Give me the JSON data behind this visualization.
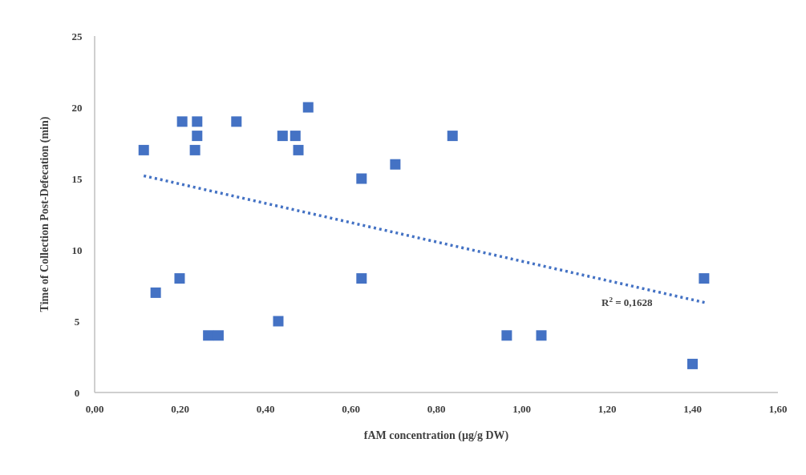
{
  "chart_data": {
    "type": "scatter",
    "xlabel": "fAM concentration  (µg/g DW)",
    "ylabel": "Time of Collection Post-Defecation (min)",
    "xlim": [
      0,
      1.6
    ],
    "xticks": [
      {
        "value": 0,
        "label": "0,00"
      },
      {
        "value": 0.2,
        "label": "0,20"
      },
      {
        "value": 0.4,
        "label": "0,40"
      },
      {
        "value": 0.6,
        "label": "0,60"
      },
      {
        "value": 0.8,
        "label": "0,80"
      },
      {
        "value": 1.0,
        "label": "1,00"
      },
      {
        "value": 1.2,
        "label": "1,20"
      },
      {
        "value": 1.4,
        "label": "1,40"
      },
      {
        "value": 1.6,
        "label": "1,60"
      }
    ],
    "ylim": [
      0,
      25
    ],
    "yticks": [
      0,
      5,
      10,
      15,
      20,
      25
    ],
    "grid": false,
    "series": [
      {
        "color": "#4472c4",
        "marker": "square",
        "x": [
          0.115,
          0.143,
          0.199,
          0.205,
          0.235,
          0.24,
          0.24,
          0.266,
          0.29,
          0.332,
          0.43,
          0.44,
          0.47,
          0.477,
          0.5,
          0.625,
          0.625,
          0.704,
          0.838,
          0.965,
          1.046,
          1.4,
          1.427
        ],
        "values": [
          17,
          7,
          8,
          19,
          17,
          19,
          18,
          4,
          4,
          19,
          5,
          18,
          18,
          17,
          20,
          15,
          8,
          16,
          18,
          4,
          4,
          2,
          8
        ]
      },
      {
        "type": "line",
        "color": "#4472c4",
        "line_style": "dotted",
        "marker": "none",
        "x": [
          0.115,
          1.43
        ],
        "values": [
          15.2,
          6.3
        ]
      }
    ],
    "annotations": [
      "R$^{2}$ = 0,1628"
    ]
  }
}
